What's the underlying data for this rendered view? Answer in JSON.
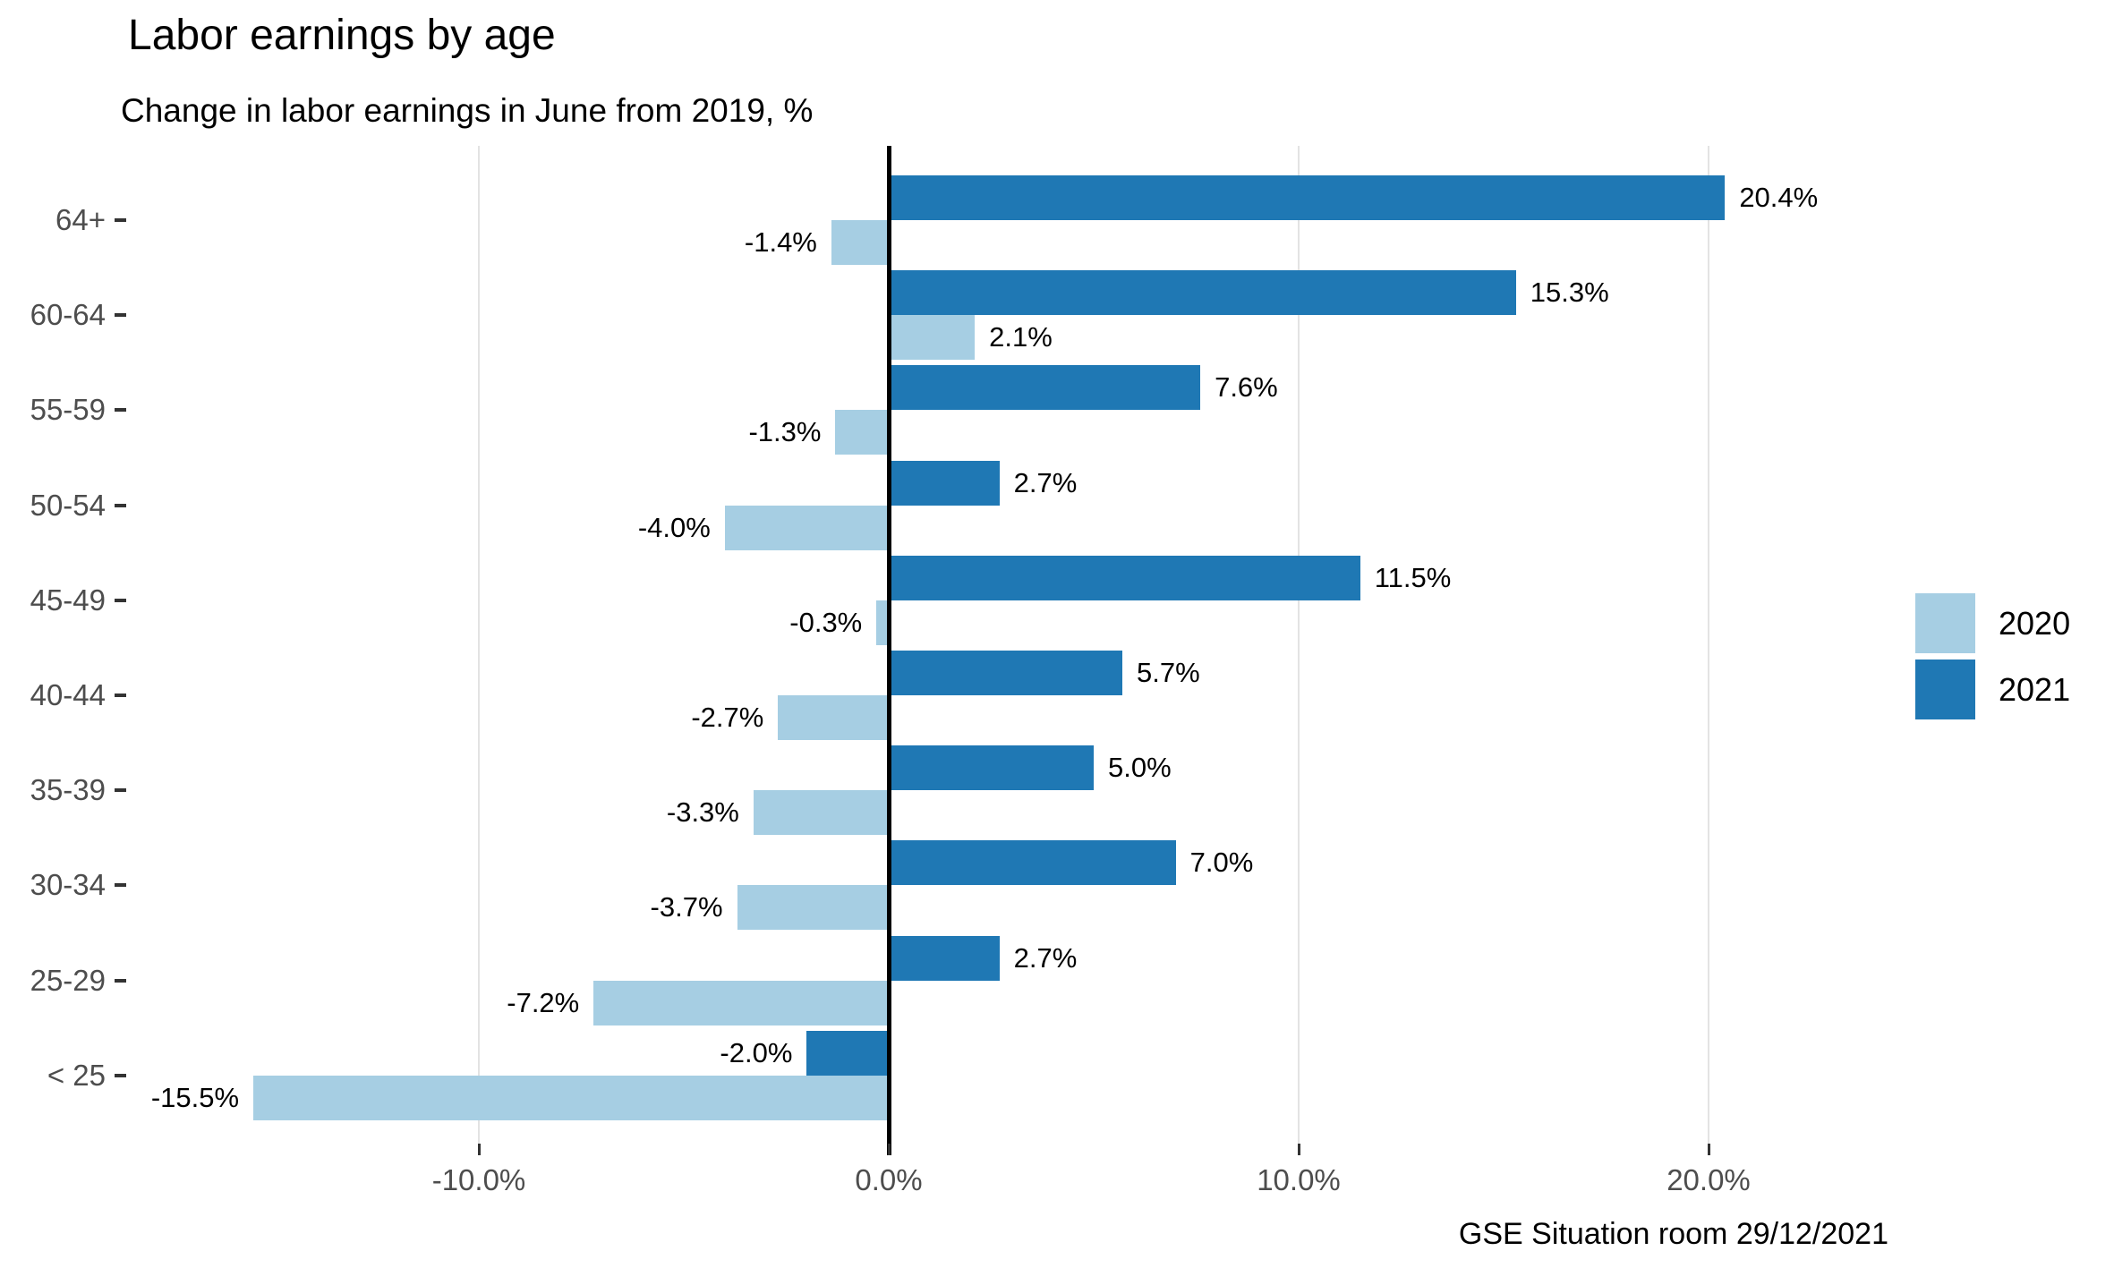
{
  "chart_data": {
    "type": "bar",
    "orientation": "horizontal",
    "title": "Labor earnings by age",
    "subtitle": "Change in labor earnings in June from 2019, %",
    "caption": "GSE Situation room 29/12/2021",
    "categories": [
      "64+",
      "60-64",
      "55-59",
      "50-54",
      "45-49",
      "40-44",
      "35-39",
      "30-34",
      "25-29",
      "< 25"
    ],
    "series": [
      {
        "name": "2020",
        "color": "#a6cee3",
        "values": [
          -1.4,
          2.1,
          -1.3,
          -4.0,
          -0.3,
          -2.7,
          -3.3,
          -3.7,
          -7.2,
          -15.5
        ]
      },
      {
        "name": "2021",
        "color": "#1f78b4",
        "values": [
          20.4,
          15.3,
          7.6,
          2.7,
          11.5,
          5.7,
          5.0,
          7.0,
          2.7,
          -2.0
        ]
      }
    ],
    "bar_labels": {
      "2020": [
        "-1.4%",
        "2.1%",
        "-1.3%",
        "-4.0%",
        "-0.3%",
        "-2.7%",
        "-3.3%",
        "-3.7%",
        "-7.2%",
        "-15.5%"
      ],
      "2021": [
        "20.4%",
        "15.3%",
        "7.6%",
        "2.7%",
        "11.5%",
        "5.7%",
        "5.0%",
        "7.0%",
        "2.7%",
        "-2.0%"
      ]
    },
    "x_axis": {
      "ticks": [
        -10,
        0,
        10,
        20
      ],
      "tick_labels": [
        "-10.0%",
        "0.0%",
        "10.0%",
        "20.0%"
      ],
      "range": [
        -19.3,
        24.8
      ],
      "gridline_color": "#e3e3e3",
      "zero_line_color": "#000000"
    },
    "y_axis": {
      "label_color": "#4d4d4d",
      "tick_color": "#333333"
    },
    "grid": "vertical-major-only",
    "legend": {
      "position": "right",
      "entries": [
        {
          "label": "2020",
          "color": "#a6cee3"
        },
        {
          "label": "2021",
          "color": "#1f78b4"
        }
      ]
    }
  }
}
